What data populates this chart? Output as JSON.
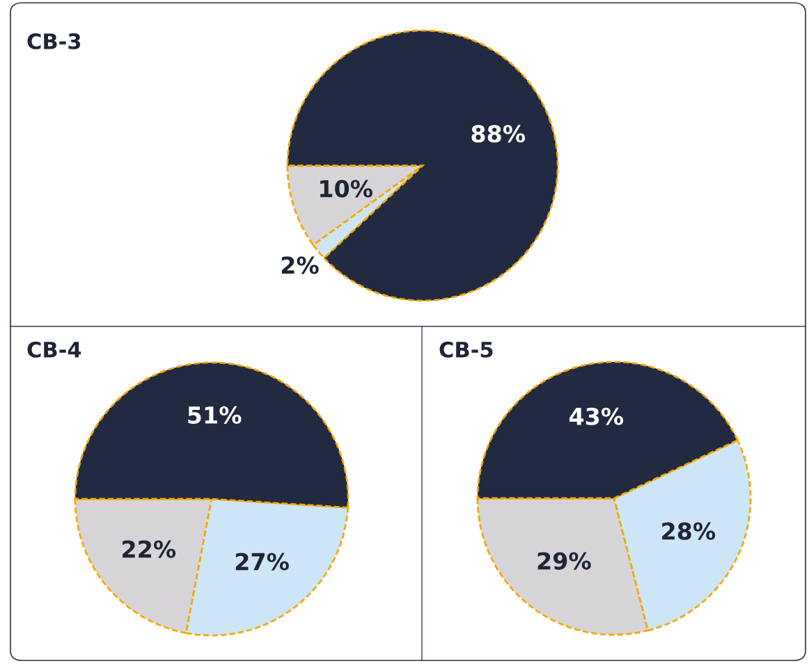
{
  "chart_data": [
    {
      "type": "pie",
      "title": "CB-3",
      "categories": [
        null,
        null,
        null
      ],
      "values": [
        10,
        2,
        88
      ],
      "value_labels": [
        "10%",
        "2%",
        "88%"
      ],
      "colors": [
        "#d6d4d7",
        "#cce6f7",
        "#212a40"
      ]
    },
    {
      "type": "pie",
      "title": "CB-4",
      "categories": [
        null,
        null,
        null
      ],
      "values": [
        22,
        27,
        51
      ],
      "value_labels": [
        "22%",
        "27%",
        "51%"
      ],
      "colors": [
        "#d6d4d7",
        "#cce6f7",
        "#212a40"
      ]
    },
    {
      "type": "pie",
      "title": "CB-5",
      "categories": [
        null,
        null,
        null
      ],
      "values": [
        29,
        28,
        43
      ],
      "value_labels": [
        "29%",
        "28%",
        "43%"
      ],
      "colors": [
        "#d6d4d7",
        "#cce6f7",
        "#212a40"
      ]
    }
  ]
}
